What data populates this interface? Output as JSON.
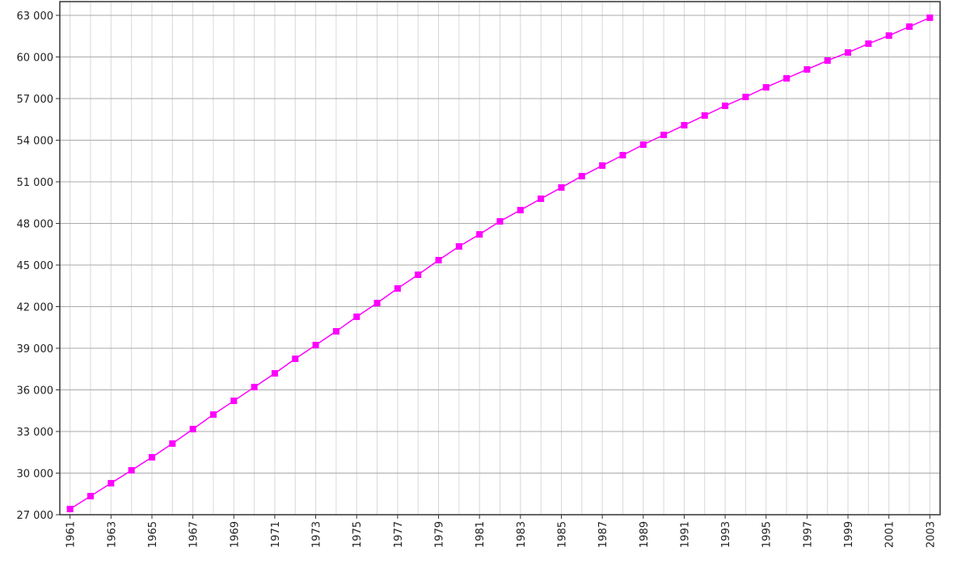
{
  "chart_data": {
    "type": "line",
    "x": [
      1961,
      1962,
      1963,
      1964,
      1965,
      1966,
      1967,
      1968,
      1969,
      1970,
      1971,
      1972,
      1973,
      1974,
      1975,
      1976,
      1977,
      1978,
      1979,
      1980,
      1981,
      1982,
      1983,
      1984,
      1985,
      1986,
      1987,
      1988,
      1989,
      1990,
      1991,
      1992,
      1993,
      1994,
      1995,
      1996,
      1997,
      1998,
      1999,
      2000,
      2001,
      2002,
      2003
    ],
    "series": [
      {
        "color": "#ff00ff",
        "values": [
          27410,
          28340,
          29270,
          30200,
          31140,
          32130,
          33170,
          34220,
          35210,
          36200,
          37190,
          38240,
          39230,
          40220,
          41270,
          42260,
          43310,
          44300,
          45350,
          46340,
          47210,
          48150,
          48960,
          49780,
          50590,
          51410,
          52170,
          52920,
          53680,
          54380,
          55080,
          55780,
          56480,
          57120,
          57810,
          58460,
          59100,
          59740,
          60320,
          60960,
          61540,
          62190,
          62830
        ]
      }
    ],
    "xlim": [
      1960.5,
      2003.5
    ],
    "xticks": [
      1961,
      1963,
      1965,
      1967,
      1969,
      1971,
      1973,
      1975,
      1977,
      1979,
      1981,
      1983,
      1985,
      1987,
      1989,
      1991,
      1993,
      1995,
      1997,
      1999,
      2001,
      2003
    ],
    "ylim": [
      27000,
      63000
    ],
    "yticks": [
      {
        "value": 27000,
        "label": "27 000"
      },
      {
        "value": 30000,
        "label": "30 000"
      },
      {
        "value": 33000,
        "label": "33 000"
      },
      {
        "value": 36000,
        "label": "36 000"
      },
      {
        "value": 39000,
        "label": "39 000"
      },
      {
        "value": 42000,
        "label": "42 000"
      },
      {
        "value": 45000,
        "label": "45 000"
      },
      {
        "value": 48000,
        "label": "48 000"
      },
      {
        "value": 51000,
        "label": "51 000"
      },
      {
        "value": 54000,
        "label": "54 000"
      },
      {
        "value": 57000,
        "label": "57 000"
      },
      {
        "value": 60000,
        "label": "60 000"
      },
      {
        "value": 63000,
        "label": "63 000"
      }
    ],
    "grid": true
  }
}
